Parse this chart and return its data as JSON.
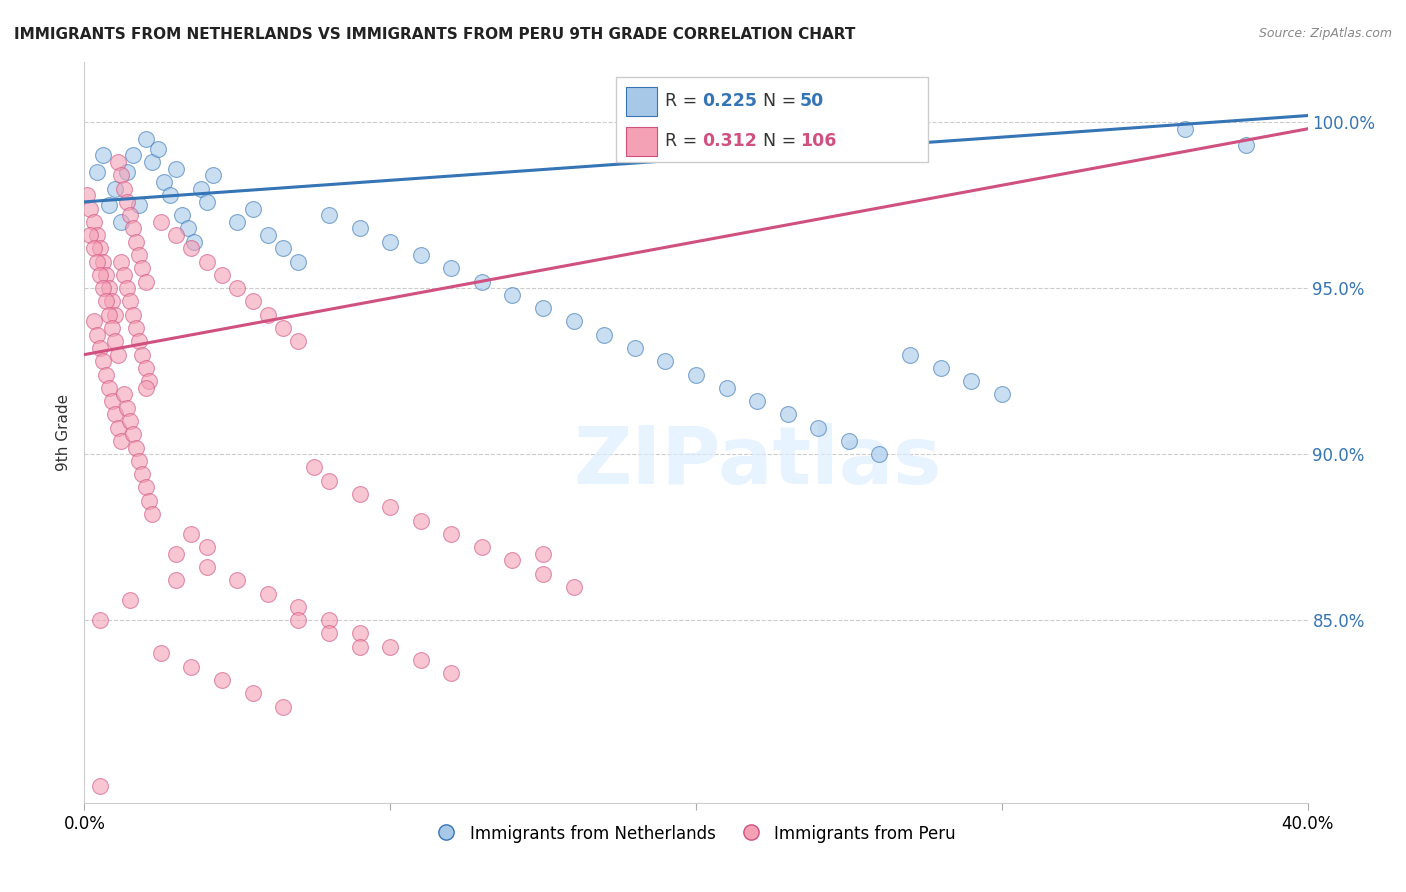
{
  "title": "IMMIGRANTS FROM NETHERLANDS VS IMMIGRANTS FROM PERU 9TH GRADE CORRELATION CHART",
  "source": "Source: ZipAtlas.com",
  "ylabel": "9th Grade",
  "ytick_labels": [
    "100.0%",
    "95.0%",
    "90.0%",
    "85.0%"
  ],
  "ytick_values": [
    1.0,
    0.95,
    0.9,
    0.85
  ],
  "xlim": [
    0.0,
    0.4
  ],
  "ylim": [
    0.795,
    1.018
  ],
  "blue_R": "0.225",
  "blue_N": "50",
  "pink_R": "0.312",
  "pink_N": "106",
  "blue_color": "#a8c8e8",
  "pink_color": "#f4a0b5",
  "blue_line_color": "#3575b5",
  "pink_line_color": "#d05080",
  "legend_label_blue": "Immigrants from Netherlands",
  "legend_label_pink": "Immigrants from Peru",
  "watermark": "ZIPatlas",
  "blue_scatter_x": [
    0.004,
    0.006,
    0.008,
    0.01,
    0.012,
    0.014,
    0.016,
    0.018,
    0.02,
    0.022,
    0.024,
    0.026,
    0.028,
    0.03,
    0.032,
    0.034,
    0.036,
    0.038,
    0.04,
    0.042,
    0.05,
    0.055,
    0.06,
    0.065,
    0.07,
    0.08,
    0.09,
    0.1,
    0.11,
    0.12,
    0.13,
    0.14,
    0.15,
    0.16,
    0.17,
    0.18,
    0.19,
    0.2,
    0.21,
    0.22,
    0.23,
    0.24,
    0.25,
    0.26,
    0.27,
    0.28,
    0.29,
    0.3,
    0.36,
    0.38
  ],
  "blue_scatter_y": [
    0.985,
    0.99,
    0.975,
    0.98,
    0.97,
    0.985,
    0.99,
    0.975,
    0.995,
    0.988,
    0.992,
    0.982,
    0.978,
    0.986,
    0.972,
    0.968,
    0.964,
    0.98,
    0.976,
    0.984,
    0.97,
    0.974,
    0.966,
    0.962,
    0.958,
    0.972,
    0.968,
    0.964,
    0.96,
    0.956,
    0.952,
    0.948,
    0.944,
    0.94,
    0.936,
    0.932,
    0.928,
    0.924,
    0.92,
    0.916,
    0.912,
    0.908,
    0.904,
    0.9,
    0.93,
    0.926,
    0.922,
    0.918,
    0.998,
    0.993
  ],
  "pink_scatter_x": [
    0.001,
    0.002,
    0.003,
    0.004,
    0.005,
    0.006,
    0.007,
    0.008,
    0.009,
    0.01,
    0.011,
    0.012,
    0.013,
    0.014,
    0.015,
    0.016,
    0.017,
    0.018,
    0.019,
    0.02,
    0.002,
    0.003,
    0.004,
    0.005,
    0.006,
    0.007,
    0.008,
    0.009,
    0.01,
    0.011,
    0.012,
    0.013,
    0.014,
    0.015,
    0.016,
    0.017,
    0.018,
    0.019,
    0.02,
    0.021,
    0.003,
    0.004,
    0.005,
    0.006,
    0.007,
    0.008,
    0.009,
    0.01,
    0.011,
    0.012,
    0.013,
    0.014,
    0.015,
    0.016,
    0.017,
    0.018,
    0.019,
    0.02,
    0.021,
    0.022,
    0.025,
    0.03,
    0.035,
    0.04,
    0.045,
    0.05,
    0.055,
    0.06,
    0.065,
    0.07,
    0.075,
    0.08,
    0.09,
    0.1,
    0.11,
    0.12,
    0.13,
    0.14,
    0.15,
    0.16,
    0.03,
    0.04,
    0.05,
    0.06,
    0.07,
    0.08,
    0.09,
    0.1,
    0.11,
    0.12,
    0.025,
    0.035,
    0.045,
    0.055,
    0.065,
    0.035,
    0.04,
    0.005,
    0.02,
    0.15,
    0.07,
    0.08,
    0.09,
    0.005,
    0.015,
    0.03
  ],
  "pink_scatter_y": [
    0.978,
    0.974,
    0.97,
    0.966,
    0.962,
    0.958,
    0.954,
    0.95,
    0.946,
    0.942,
    0.988,
    0.984,
    0.98,
    0.976,
    0.972,
    0.968,
    0.964,
    0.96,
    0.956,
    0.952,
    0.966,
    0.962,
    0.958,
    0.954,
    0.95,
    0.946,
    0.942,
    0.938,
    0.934,
    0.93,
    0.958,
    0.954,
    0.95,
    0.946,
    0.942,
    0.938,
    0.934,
    0.93,
    0.926,
    0.922,
    0.94,
    0.936,
    0.932,
    0.928,
    0.924,
    0.92,
    0.916,
    0.912,
    0.908,
    0.904,
    0.918,
    0.914,
    0.91,
    0.906,
    0.902,
    0.898,
    0.894,
    0.89,
    0.886,
    0.882,
    0.97,
    0.966,
    0.962,
    0.958,
    0.954,
    0.95,
    0.946,
    0.942,
    0.938,
    0.934,
    0.896,
    0.892,
    0.888,
    0.884,
    0.88,
    0.876,
    0.872,
    0.868,
    0.864,
    0.86,
    0.87,
    0.866,
    0.862,
    0.858,
    0.854,
    0.85,
    0.846,
    0.842,
    0.838,
    0.834,
    0.84,
    0.836,
    0.832,
    0.828,
    0.824,
    0.876,
    0.872,
    0.8,
    0.92,
    0.87,
    0.85,
    0.846,
    0.842,
    0.85,
    0.856,
    0.862
  ],
  "blue_trend_x": [
    0.0,
    0.4
  ],
  "blue_trend_y": [
    0.976,
    1.002
  ],
  "pink_trend_x": [
    0.0,
    0.4
  ],
  "pink_trend_y": [
    0.93,
    0.998
  ]
}
